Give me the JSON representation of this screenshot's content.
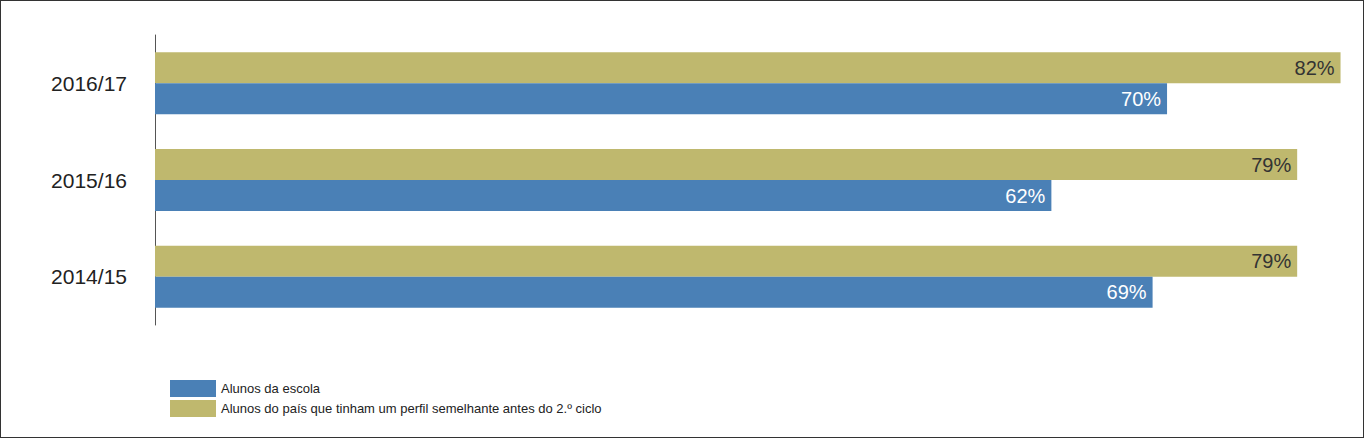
{
  "chart_data": {
    "type": "bar",
    "orientation": "horizontal",
    "categories": [
      "2014/15",
      "2015/16",
      "2016/17"
    ],
    "series": [
      {
        "name": "Alunos da escola",
        "color": "#4a80b6",
        "values": [
          69,
          62,
          70
        ],
        "value_labels": [
          "69%",
          "62%",
          "70%"
        ]
      },
      {
        "name": "Alunos do país que tinham um perfil semelhante antes do 2.º ciclo",
        "color": "#bfb86e",
        "values": [
          79,
          79,
          82
        ],
        "value_labels": [
          "79%",
          "79%",
          "82%"
        ]
      }
    ],
    "xlim": [
      0,
      83
    ],
    "data_labels": true,
    "tick_labels": "y",
    "grid": false,
    "legend": "bottom-left"
  }
}
